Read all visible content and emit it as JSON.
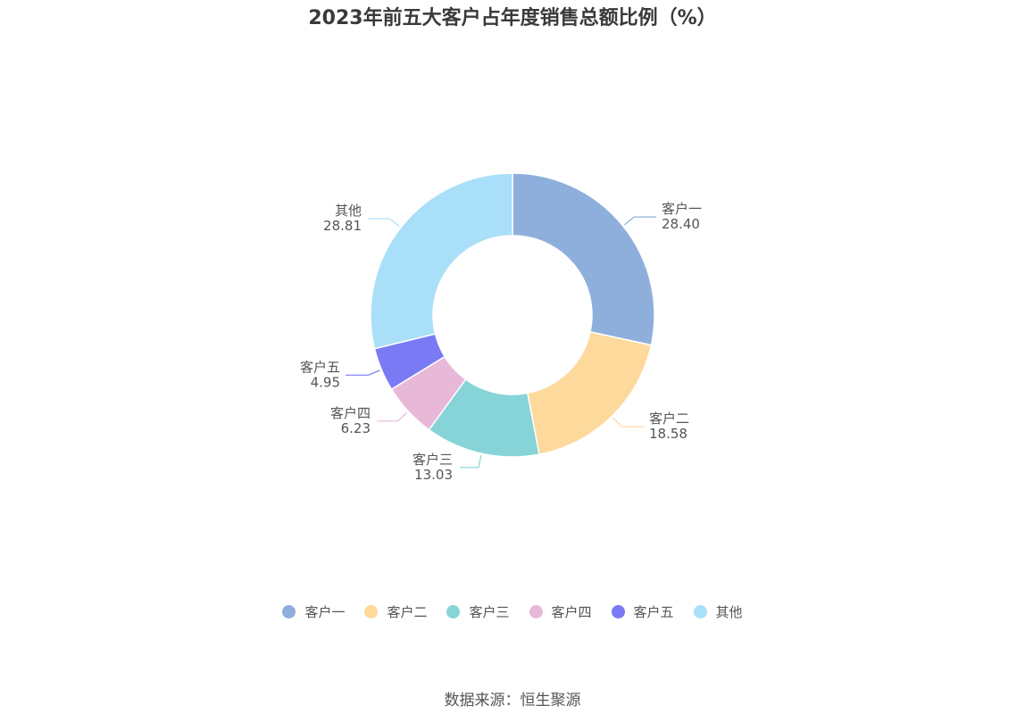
{
  "chart_data": {
    "type": "pie",
    "title": "2023年前五大客户占年度销售总额比例（%）",
    "categories": [
      "客户一",
      "客户二",
      "客户三",
      "客户四",
      "客户五",
      "其他"
    ],
    "values": [
      28.4,
      18.58,
      13.03,
      6.23,
      4.95,
      28.81
    ],
    "value_labels": [
      "28.40",
      "18.58",
      "13.03",
      "6.23",
      "4.95",
      "28.81"
    ],
    "colors": [
      "#8eafdc",
      "#fdd99c",
      "#86d4d8",
      "#e8b8d9",
      "#7a7af5",
      "#a9dff8"
    ],
    "donut": true,
    "legend_position": "bottom"
  },
  "footer": {
    "source": "数据来源：恒生聚源"
  }
}
